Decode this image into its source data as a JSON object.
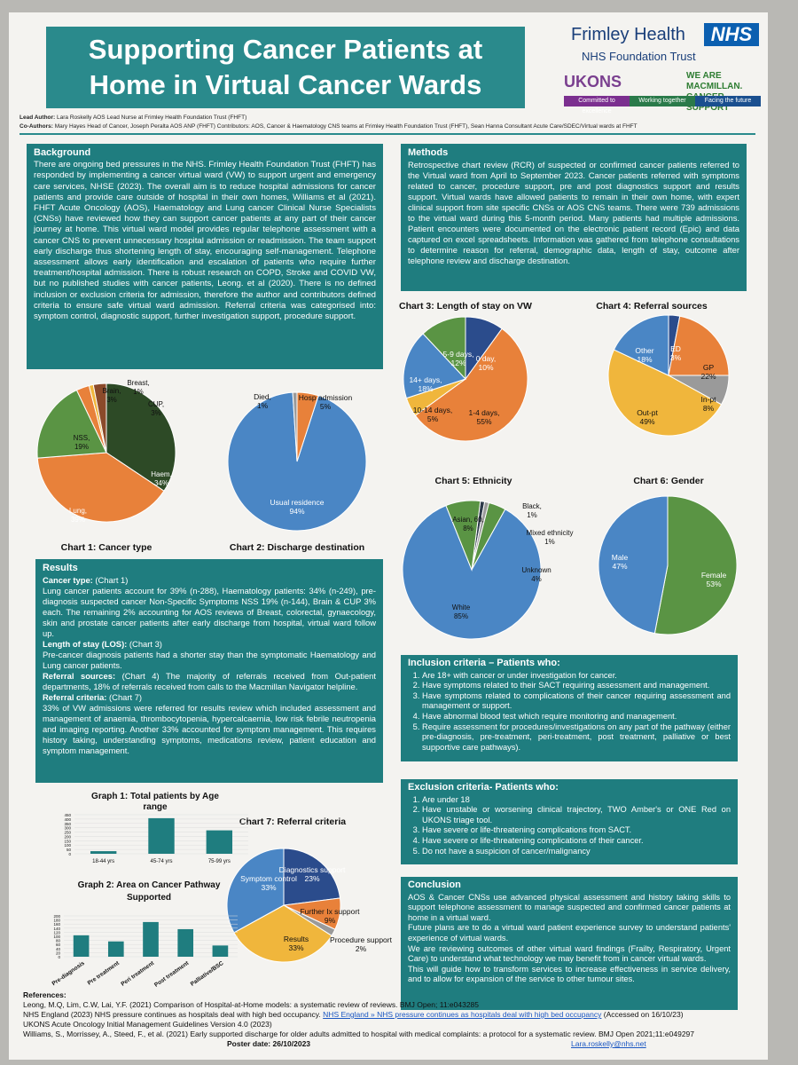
{
  "header": {
    "title": "Supporting Cancer Patients at Home in Virtual Cancer Wards",
    "trust_name": "Frimley Health",
    "nhs_badge": "NHS",
    "trust_foundation": "NHS Foundation Trust",
    "ukons": "UKONS",
    "macmillan": "WE ARE MACMILLAN. CANCER SUPPORT",
    "taglines": [
      "Committed to excellence",
      "Working together",
      "Facing the future"
    ],
    "lead_author_label": "Lead Author:",
    "lead_author": "Lara Roskelly AOS Lead Nurse at Frimley Health Foundation Trust (FHFT)",
    "coauthors_label": "Co-Authors:",
    "coauthors": "Mary Hayes Head of Cancer, Joseph Peralta AOS ANP (FHFT)  Contributors: AOS, Cancer & Haematology CNS teams at Frimley Health Foundation Trust (FHFT), Sean Hanna Consultant Acute Care/SDEC/Virtual wards at FHFT"
  },
  "background": {
    "heading": "Background",
    "text": "There are ongoing bed pressures in the NHS. Frimley Health Foundation Trust (FHFT) has responded by implementing a cancer virtual ward (VW) to support urgent and emergency care services, NHSE (2023). The overall aim is to reduce hospital admissions for cancer patients and provide care outside of hospital in their own homes, Williams et al (2021). FHFT Acute Oncology (AOS), Haematology and Lung cancer Clinical Nurse Specialists (CNSs) have reviewed how they can support cancer patients at any part of their cancer journey at home. This virtual ward model provides regular telephone assessment with a cancer CNS to prevent unnecessary hospital admission or readmission. The team support early discharge thus shortening length of stay, encouraging self-management. Telephone assessment allows early identification and escalation of patients who require further treatment/hospital admission. There is robust research on COPD, Stroke and COVID VW, but no published studies with cancer patients, Leong. et al (2020). There is no defined inclusion or exclusion criteria for admission, therefore the author and contributors defined criteria to ensure safe virtual ward admission. Referral criteria was categorised into: symptom control, diagnostic support, further investigation support, procedure support."
  },
  "methods": {
    "heading": "Methods",
    "text": "Retrospective chart review (RCR) of suspected or confirmed cancer patients referred to the Virtual ward from April to September 2023. Cancer patients referred with symptoms related to cancer, procedure support, pre and post diagnostics support and results support. Virtual wards have allowed patients to remain in their own home, with expert clinical support from site specific CNSs or AOS CNS teams. There were 739 admissions to the virtual ward during this 5-month period. Many patients had multiple admissions. Patient encounters were documented on the electronic patient record (Epic) and data captured on excel spreadsheets. Information was gathered from telephone consultations to determine reason for referral, demographic data, length of stay, outcome after telephone review and discharge destination."
  },
  "results": {
    "heading": "Results",
    "p1_label": "Cancer type:",
    "p1_ref": "(Chart 1)",
    "p1": "Lung cancer patients account for 39% (n-288), Haematology patients: 34% (n-249), pre-diagnosis suspected cancer Non-Specific Symptoms NSS 19% (n-144), Brain & CUP 3% each. The remaining 2% accounting for AOS reviews of Breast, colorectal, gynaecology, skin and prostate cancer patients after early discharge from hospital, virtual ward follow up.",
    "p2_label": "Length of stay (LOS):",
    "p2_ref": "(Chart 3)",
    "p2": "Pre-cancer diagnosis patients had a shorter stay than the symptomatic Haematology and Lung cancer patients.",
    "p3_label": "Referral sources:",
    "p3": "(Chart 4) The majority of referrals received from Out-patient departments, 18% of referrals received from calls to the Macmillan Navigator helpline.",
    "p4_label": "Referral criteria:",
    "p4_ref": "(Chart 7)",
    "p4": "33% of VW admissions were referred for results review which included assessment and management of anaemia, thrombocytopenia, hypercalcaemia, low risk febrile neutropenia and imaging reporting. Another 33% accounted for symptom management. This requires history taking, understanding symptoms, medications review, patient education and symptom management."
  },
  "inclusion": {
    "heading": "Inclusion criteria – Patients who:",
    "items": [
      "Are 18+ with cancer or under investigation for cancer.",
      "Have symptoms related to their SACT requiring assessment and management.",
      "Have symptoms related to complications of their cancer requiring assessment and management or support.",
      "Have abnormal blood test which require monitoring and management.",
      "Require assessment for procedures/investigations on any part of the pathway (either pre-diagnosis, pre-treatment, peri-treatment, post treatment, palliative or best supportive care pathways)."
    ]
  },
  "exclusion": {
    "heading": "Exclusion criteria- Patients who:",
    "items": [
      "Are under 18",
      "Have unstable or worsening clinical trajectory, TWO Amber's or ONE Red on UKONS triage tool.",
      "Have severe or life-threatening complications from SACT.",
      "Have severe or life-threatening complications of their cancer.",
      "Do not have a suspicion of cancer/malignancy"
    ]
  },
  "conclusion": {
    "heading": "Conclusion",
    "paragraphs": [
      "AOS & Cancer CNSs use advanced physical assessment and history taking skills to support telephone assessment to manage suspected and confirmed cancer patients at home in a virtual ward.",
      "Future plans are to do a virtual ward patient experience survey to understand patients' experience of virtual wards.",
      "We are reviewing outcomes of other virtual ward findings (Frailty, Respiratory, Urgent Care) to understand what technology we may benefit from in cancer virtual wards.",
      "This will guide how to transform services to increase effectiveness in service delivery, and to allow for expansion of the service to other tumour sites."
    ]
  },
  "references": {
    "heading": "References:",
    "r1": "Leong, M.Q, Lim, C.W, Lai, Y.F. (2021) Comparison of Hospital-at-Home models: a systematic review of reviews. BMJ Open; 11:e043285",
    "r2a": "NHS England (2023) NHS pressure continues as hospitals deal with high bed occupancy.",
    "r2_link": "NHS England » NHS pressure continues as hospitals deal with high bed occupancy",
    "r2b": "(Accessed on 16/10/23)",
    "r3": "UKONS Acute Oncology Initial Management Guidelines Version 4.0 (2023)",
    "r4": "Williams, S., Morrissey, A., Steed, F., et al. (2021) Early supported discharge for older adults admitted to hospital with medical complaints: a protocol for a systematic review. BMJ Open 2021;11:e049297",
    "poster_date": "Poster date: 26/10/2023",
    "email": "Lara.roskelly@nhs.net"
  },
  "colors": {
    "teal": "#1f7d7f",
    "blue": "#4a86c5",
    "orange": "#e8813a",
    "green": "#5a9444",
    "darkgreen": "#2d4a26",
    "navy": "#2b4c8c",
    "grey": "#9a9a9a",
    "yellow": "#f0b63c",
    "brown": "#8b4a2a"
  },
  "chart_data": [
    {
      "id": "chart1",
      "type": "pie",
      "title": "Chart 1: Cancer type",
      "slices": [
        {
          "label": "Haem,",
          "value": 34,
          "display": "34%",
          "color": "#2d4a26"
        },
        {
          "label": "Lung,",
          "value": 39,
          "display": "39%",
          "color": "#e8813a"
        },
        {
          "label": "NSS,",
          "value": 19,
          "display": "19%",
          "color": "#5a9444"
        },
        {
          "label": "Brain,",
          "value": 3,
          "display": "3%",
          "color": "#e8813a"
        },
        {
          "label": "Breast,",
          "value": 1,
          "display": "1%",
          "color": "#f0b63c"
        },
        {
          "label": "CUP,",
          "value": 3,
          "display": "3%",
          "color": "#8b4a2a"
        }
      ]
    },
    {
      "id": "chart2",
      "type": "pie",
      "title": "Chart 2: Discharge destination",
      "slices": [
        {
          "label": "Usual residence",
          "value": 94,
          "display": "94%",
          "color": "#4a86c5"
        },
        {
          "label": "Died,",
          "value": 1,
          "display": "1%",
          "color": "#9a9a9a"
        },
        {
          "label": "Hosp admission",
          "value": 5,
          "display": "5%",
          "color": "#e8813a"
        }
      ]
    },
    {
      "id": "chart3",
      "type": "pie",
      "title": "Chart 3: Length of stay on VW",
      "slices": [
        {
          "label": "0 day,",
          "value": 10,
          "display": "10%",
          "color": "#2b4c8c"
        },
        {
          "label": "1-4 days,",
          "value": 55,
          "display": "55%",
          "color": "#e8813a"
        },
        {
          "label": "10-14 days,",
          "value": 5,
          "display": "5%",
          "color": "#f0b63c"
        },
        {
          "label": "14+ days,",
          "value": 18,
          "display": "18%",
          "color": "#4a86c5"
        },
        {
          "label": "5-9 days,",
          "value": 12,
          "display": "12%",
          "color": "#5a9444"
        }
      ]
    },
    {
      "id": "chart4",
      "type": "pie",
      "title": "Chart 4: Referral sources",
      "slices": [
        {
          "label": "ED",
          "value": 3,
          "display": "3%",
          "color": "#2b4c8c"
        },
        {
          "label": "GP",
          "value": 22,
          "display": "22%",
          "color": "#e8813a"
        },
        {
          "label": "In-pt",
          "value": 8,
          "display": "8%",
          "color": "#9a9a9a"
        },
        {
          "label": "Out-pt",
          "value": 49,
          "display": "49%",
          "color": "#f0b63c"
        },
        {
          "label": "Other",
          "value": 18,
          "display": "18%",
          "color": "#4a86c5"
        }
      ]
    },
    {
      "id": "chart5",
      "type": "pie",
      "title": "Chart 5: Ethnicity",
      "slices": [
        {
          "label": "Black,",
          "value": 1,
          "display": "1%",
          "color": "#2d3a4a"
        },
        {
          "label": "Mixed ethnicity",
          "value": 1,
          "display": "1%",
          "color": "#9a9a9a"
        },
        {
          "label": "Unknown",
          "value": 4,
          "display": "4%",
          "color": "#5a9444"
        },
        {
          "label": "White",
          "value": 85,
          "display": "85%",
          "color": "#4a86c5"
        },
        {
          "label": "Asian, 60,",
          "value": 8,
          "display": "8%",
          "color": "#5a9444"
        }
      ]
    },
    {
      "id": "chart6",
      "type": "pie",
      "title": "Chart 6: Gender",
      "slices": [
        {
          "label": "Female",
          "value": 53,
          "display": "53%",
          "color": "#5a9444"
        },
        {
          "label": "Male",
          "value": 47,
          "display": "47%",
          "color": "#4a86c5"
        }
      ]
    },
    {
      "id": "chart7",
      "type": "pie",
      "title": "Chart 7: Referral criteria",
      "slices": [
        {
          "label": "Diagnostics support",
          "value": 23,
          "display": "23%",
          "color": "#2b4c8c"
        },
        {
          "label": "Further Ix support",
          "value": 9,
          "display": "9%",
          "color": "#e8813a"
        },
        {
          "label": "Procedure support",
          "value": 2,
          "display": "2%",
          "color": "#9a9a9a"
        },
        {
          "label": "Results",
          "value": 33,
          "display": "33%",
          "color": "#f0b63c"
        },
        {
          "label": "Symptom control",
          "value": 33,
          "display": "33%",
          "color": "#4a86c5"
        }
      ]
    },
    {
      "id": "graph1",
      "type": "bar",
      "title": "Graph 1: Total patients by Age range",
      "categories": [
        "18-44 yrs",
        "45-74 yrs",
        "75-99 yrs"
      ],
      "values": [
        30,
        410,
        270
      ],
      "yticks": [
        0,
        50,
        100,
        150,
        200,
        250,
        300,
        350,
        400,
        450
      ],
      "ylim": [
        0,
        450
      ]
    },
    {
      "id": "graph2",
      "type": "bar",
      "title": "Graph 2: Area on Cancer Pathway Supported",
      "categories": [
        "Pre-diagnosis",
        "Pre treatment",
        "Peri treatment",
        "Post treatment",
        "Palliative/BSC"
      ],
      "values": [
        105,
        75,
        170,
        135,
        55
      ],
      "yticks": [
        0,
        20,
        40,
        60,
        80,
        100,
        120,
        140,
        160,
        180,
        200
      ],
      "ylim": [
        0,
        200
      ]
    }
  ]
}
